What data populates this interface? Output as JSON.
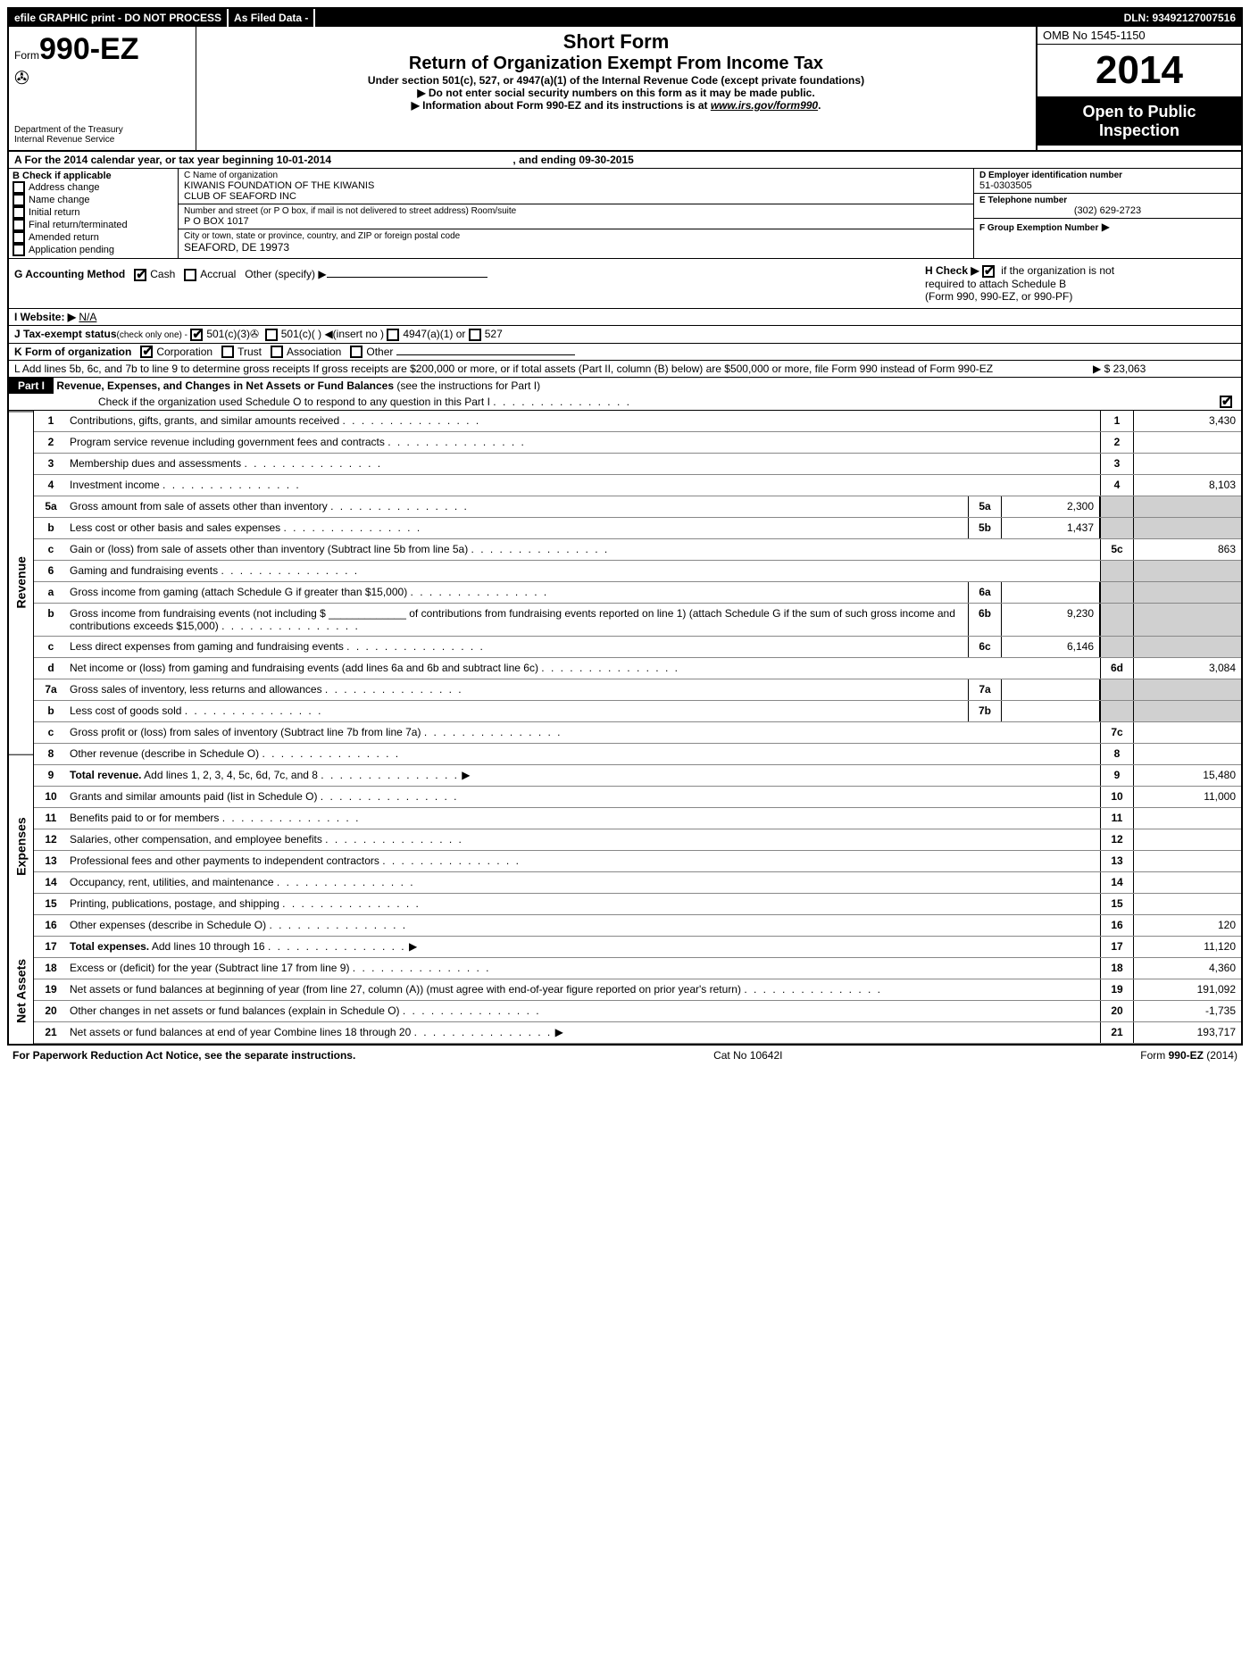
{
  "topbar": {
    "left": "efile GRAPHIC print - DO NOT PROCESS",
    "mid": "As Filed Data -",
    "right": "DLN: 93492127007516"
  },
  "header": {
    "form_prefix": "Form",
    "form_no": "990-EZ",
    "dept1": "Department of the Treasury",
    "dept2": "Internal Revenue Service",
    "title1": "Short Form",
    "title2": "Return of Organization Exempt From Income Tax",
    "title3": "Under section 501(c), 527, or 4947(a)(1) of the Internal Revenue Code (except private foundations)",
    "note1": "Do not enter social security numbers on this form as it may be made public.",
    "note2_pre": "Information about Form 990-EZ and its instructions is at ",
    "note2_link": "www.irs.gov/form990",
    "omb": "OMB No  1545-1150",
    "year": "2014",
    "open1": "Open to Public",
    "open2": "Inspection"
  },
  "A": {
    "text_pre": "A  For the 2014 calendar year, or tax year beginning 10-01-2014",
    "text_end": ", and ending 09-30-2015"
  },
  "B": {
    "hdr": "B  Check if applicable",
    "items": [
      "Address change",
      "Name change",
      "Initial return",
      "Final return/terminated",
      "Amended return",
      "Application pending"
    ]
  },
  "C": {
    "lbl_name": "C Name of organization",
    "name1": "KIWANIS FOUNDATION OF THE KIWANIS",
    "name2": "CLUB OF SEAFORD INC",
    "lbl_addr": "Number and street (or P  O  box, if mail is not delivered to street address) Room/suite",
    "addr": "P O BOX 1017",
    "lbl_city": "City or town, state or province, country, and ZIP or foreign postal code",
    "city": "SEAFORD, DE  19973"
  },
  "D": {
    "lbl": "D Employer identification number",
    "val": "51-0303505"
  },
  "E": {
    "lbl": "E Telephone number",
    "val": "(302) 629-2723"
  },
  "F": {
    "lbl": "F Group Exemption Number",
    "arrow": "▶"
  },
  "G": {
    "lbl": "G Accounting Method",
    "cash": "Cash",
    "accrual": "Accrual",
    "other": "Other (specify) ▶"
  },
  "H": {
    "l1": "H  Check ▶",
    "l1b": "if the organization is not",
    "l2": "required to attach Schedule B",
    "l3": "(Form 990, 990-EZ, or 990-PF)"
  },
  "I": {
    "lbl": "I Website: ▶",
    "val": "N/A"
  },
  "J": {
    "lbl": "J Tax-exempt status",
    "sub": "(check only one) -",
    "o1": "501(c)(3)",
    "o2": "501(c)(  )",
    "o2b": "◀(insert no )",
    "o3": "4947(a)(1) or",
    "o4": "527"
  },
  "K": {
    "lbl": "K Form of organization",
    "c": "Corporation",
    "t": "Trust",
    "a": "Association",
    "o": "Other"
  },
  "L": {
    "text": "L Add lines 5b, 6c, and 7b to line 9 to determine gross receipts  If gross receipts are $200,000 or more, or if total assets (Part II, column (B) below) are $500,000 or more, file Form 990 instead of Form 990-EZ",
    "val": "$ 23,063"
  },
  "part1": {
    "hdr": "Part I",
    "title": "Revenue, Expenses, and Changes in Net Assets or Fund Balances",
    "sub": "(see the instructions for Part I)",
    "check": "Check if the organization used Schedule O to respond to any question in this Part I"
  },
  "vlabels": {
    "rev": "Revenue",
    "exp": "Expenses",
    "na": "Net Assets"
  },
  "lines": {
    "l1": {
      "n": "1",
      "d": "Contributions, gifts, grants, and similar amounts received",
      "r": "1",
      "v": "3,430"
    },
    "l2": {
      "n": "2",
      "d": "Program service revenue including government fees and contracts",
      "r": "2",
      "v": ""
    },
    "l3": {
      "n": "3",
      "d": "Membership dues and assessments",
      "r": "3",
      "v": ""
    },
    "l4": {
      "n": "4",
      "d": "Investment income",
      "r": "4",
      "v": "8,103"
    },
    "l5a": {
      "n": "5a",
      "d": "Gross amount from sale of assets other than inventory",
      "m": "5a",
      "mv": "2,300"
    },
    "l5b": {
      "n": "b",
      "d": "Less  cost or other basis and sales expenses",
      "m": "5b",
      "mv": "1,437"
    },
    "l5c": {
      "n": "c",
      "d": "Gain or (loss) from sale of assets other than inventory (Subtract line 5b from line 5a)",
      "r": "5c",
      "v": "863"
    },
    "l6": {
      "n": "6",
      "d": "Gaming and fundraising events"
    },
    "l6a": {
      "n": "a",
      "d": "Gross income from gaming (attach Schedule G if greater than $15,000)",
      "m": "6a",
      "mv": ""
    },
    "l6b": {
      "n": "b",
      "d": "Gross income from fundraising events (not including $ _____________ of contributions from fundraising events reported on line 1) (attach Schedule G if the sum of such gross income and contributions exceeds $15,000)",
      "m": "6b",
      "mv": "9,230"
    },
    "l6c": {
      "n": "c",
      "d": "Less  direct expenses from gaming and fundraising events",
      "m": "6c",
      "mv": "6,146"
    },
    "l6d": {
      "n": "d",
      "d": "Net income or (loss) from gaming and fundraising events (add lines 6a and 6b and subtract line 6c)",
      "r": "6d",
      "v": "3,084"
    },
    "l7a": {
      "n": "7a",
      "d": "Gross sales of inventory, less returns and allowances",
      "m": "7a",
      "mv": ""
    },
    "l7b": {
      "n": "b",
      "d": "Less  cost of goods sold",
      "m": "7b",
      "mv": ""
    },
    "l7c": {
      "n": "c",
      "d": "Gross profit or (loss) from sales of inventory (Subtract line 7b from line 7a)",
      "r": "7c",
      "v": ""
    },
    "l8": {
      "n": "8",
      "d": "Other revenue (describe in Schedule O)",
      "r": "8",
      "v": ""
    },
    "l9": {
      "n": "9",
      "d": "Total revenue. Add lines 1, 2, 3, 4, 5c, 6d, 7c, and 8",
      "r": "9",
      "v": "15,480",
      "arrow": true,
      "bold": true
    },
    "l10": {
      "n": "10",
      "d": "Grants and similar amounts paid (list in Schedule O)",
      "r": "10",
      "v": "11,000"
    },
    "l11": {
      "n": "11",
      "d": "Benefits paid to or for members",
      "r": "11",
      "v": ""
    },
    "l12": {
      "n": "12",
      "d": "Salaries, other compensation, and employee benefits",
      "r": "12",
      "v": ""
    },
    "l13": {
      "n": "13",
      "d": "Professional fees and other payments to independent contractors",
      "r": "13",
      "v": ""
    },
    "l14": {
      "n": "14",
      "d": "Occupancy, rent, utilities, and maintenance",
      "r": "14",
      "v": ""
    },
    "l15": {
      "n": "15",
      "d": "Printing, publications, postage, and shipping",
      "r": "15",
      "v": ""
    },
    "l16": {
      "n": "16",
      "d": "Other expenses (describe in Schedule O)",
      "r": "16",
      "v": "120"
    },
    "l17": {
      "n": "17",
      "d": "Total expenses. Add lines 10 through 16",
      "r": "17",
      "v": "11,120",
      "arrow": true,
      "bold": true
    },
    "l18": {
      "n": "18",
      "d": "Excess or (deficit) for the year (Subtract line 17 from line 9)",
      "r": "18",
      "v": "4,360"
    },
    "l19": {
      "n": "19",
      "d": "Net assets or fund balances at beginning of year (from line 27, column (A)) (must agree with end-of-year figure reported on prior year's return)",
      "r": "19",
      "v": "191,092"
    },
    "l20": {
      "n": "20",
      "d": "Other changes in net assets or fund balances (explain in Schedule O)",
      "r": "20",
      "v": "-1,735"
    },
    "l21": {
      "n": "21",
      "d": "Net assets or fund balances at end of year  Combine lines 18 through 20",
      "r": "21",
      "v": "193,717",
      "arrow": true
    }
  },
  "footer": {
    "left": "For Paperwork Reduction Act Notice, see the separate instructions.",
    "mid": "Cat No  10642I",
    "right": "Form 990-EZ (2014)"
  }
}
